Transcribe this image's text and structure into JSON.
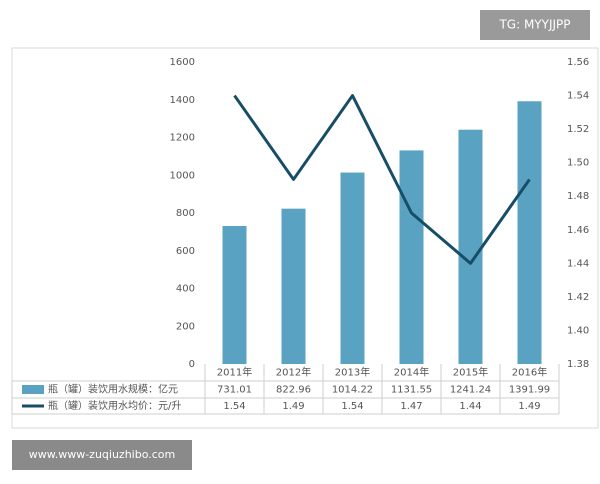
{
  "chart_data": {
    "type": "bar-line",
    "categories": [
      "2011年",
      "2012年",
      "2013年",
      "2014年",
      "2015年",
      "2016年"
    ],
    "series": [
      {
        "name": "瓶（罐）装饮用水规模：亿元",
        "color": "#5aa2c2",
        "values": [
          731.01,
          822.96,
          1014.22,
          1131.55,
          1241.24,
          1391.99
        ]
      },
      {
        "name": "瓶（罐）装饮用水均价：元/升",
        "color": "#174d66",
        "axis": "y2",
        "values": [
          1.54,
          1.49,
          1.54,
          1.47,
          1.44,
          1.49
        ]
      }
    ],
    "ylim": [
      0,
      1600
    ],
    "yticks": [
      0,
      200,
      400,
      600,
      800,
      1000,
      1200,
      1400,
      1600
    ],
    "y2lim": [
      1.38,
      1.56
    ],
    "y2ticks": [
      1.38,
      {
        "value": 1.4,
        "label": "1.40"
      },
      1.42,
      1.44,
      1.46,
      1.48,
      {
        "value": 1.5,
        "label": "1.50"
      },
      1.52,
      1.54,
      1.56
    ],
    "grid": false
  },
  "watermarks": {
    "top": "TG: MYYJJPP",
    "bottom": "www.www-zuqiuzhibo.com"
  }
}
